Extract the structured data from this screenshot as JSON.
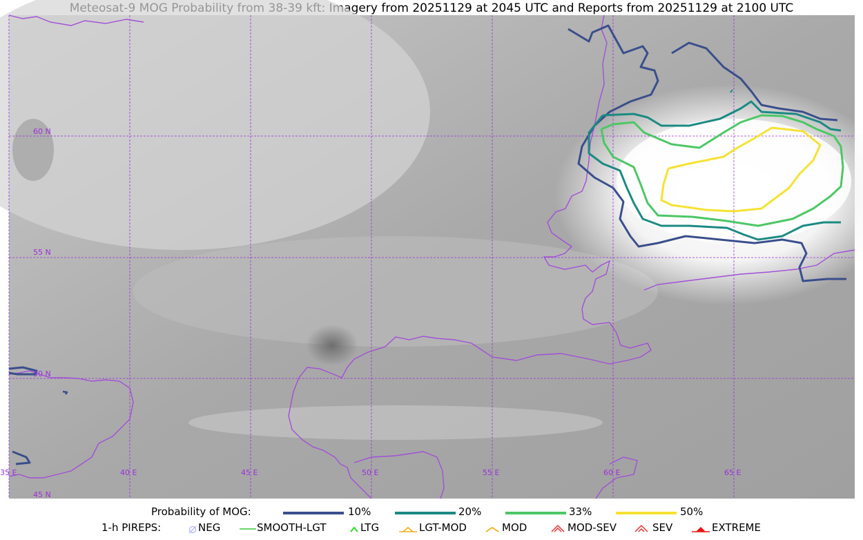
{
  "title": "Meteosat-9 MOG Probability from 38-39 kft: Imagery from 20251129 at 2045 UTC and Reports from 20251129 at 2100 UTC",
  "map": {
    "lon_labels": [
      "35 E",
      "40 E",
      "45 E",
      "50 E",
      "55 E",
      "60 E",
      "65 E"
    ],
    "lat_labels": [
      "60 N",
      "55 N",
      "50 N",
      "45 N"
    ],
    "colors": {
      "coastline": "#a24fd8",
      "grid": "#9b30d9"
    }
  },
  "legend": {
    "probability": {
      "label": "Probability of MOG:",
      "items": [
        {
          "label": "10%",
          "color": "#3a4e8c"
        },
        {
          "label": "20%",
          "color": "#1b8a83"
        },
        {
          "label": "33%",
          "color": "#4cc765"
        },
        {
          "label": "50%",
          "color": "#f5e232"
        }
      ]
    },
    "pireps": {
      "label": "1-h PIREPS:",
      "items": [
        {
          "label": "NEG",
          "color": "#b5b5ff",
          "icon": "neg-icon"
        },
        {
          "label": "SMOOTH-LGT",
          "color": "#33cc33",
          "icon": "smooth-lgt-line-icon"
        },
        {
          "label": "LTG",
          "color": "#22dd22",
          "icon": "ltg-caret-icon"
        },
        {
          "label": "LGT-MOD",
          "color": "#f2b01e",
          "icon": "lgt-mod-caret-icon"
        },
        {
          "label": "MOD",
          "color": "#f2b01e",
          "icon": "mod-caret-icon"
        },
        {
          "label": "MOD-SEV",
          "color": "#ee3333",
          "icon": "mod-sev-caret-icon"
        },
        {
          "label": "SEV",
          "color": "#ee3333",
          "icon": "sev-caret-icon"
        },
        {
          "label": "EXTREME",
          "color": "#ee1111",
          "icon": "extreme-caret-icon"
        }
      ]
    }
  }
}
